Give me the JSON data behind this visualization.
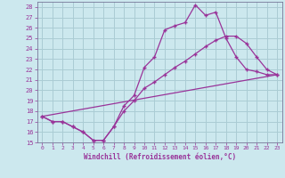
{
  "xlabel": "Windchill (Refroidissement éolien,°C)",
  "bg_color": "#cce8ee",
  "grid_color": "#aaccd4",
  "line_color": "#993399",
  "xlim": [
    -0.5,
    23.5
  ],
  "ylim": [
    15,
    28.5
  ],
  "xticks": [
    0,
    1,
    2,
    3,
    4,
    5,
    6,
    7,
    8,
    9,
    10,
    11,
    12,
    13,
    14,
    15,
    16,
    17,
    18,
    19,
    20,
    21,
    22,
    23
  ],
  "yticks": [
    15,
    16,
    17,
    18,
    19,
    20,
    21,
    22,
    23,
    24,
    25,
    26,
    27,
    28
  ],
  "series1_x": [
    0,
    1,
    2,
    3,
    4,
    5,
    6,
    7,
    8,
    9,
    10,
    11,
    12,
    13,
    14,
    15,
    16,
    17,
    18,
    19,
    20,
    21,
    22,
    23
  ],
  "series1_y": [
    17.5,
    17.0,
    17.0,
    16.5,
    16.0,
    15.2,
    15.2,
    16.5,
    18.5,
    19.5,
    22.2,
    23.2,
    25.8,
    26.2,
    26.5,
    28.2,
    27.2,
    27.5,
    25.0,
    23.2,
    22.0,
    21.8,
    21.5,
    21.5
  ],
  "series2_x": [
    0,
    23
  ],
  "series2_y": [
    17.5,
    21.5
  ],
  "series3_x": [
    0,
    1,
    2,
    3,
    4,
    5,
    6,
    7,
    8,
    9,
    10,
    11,
    12,
    13,
    14,
    15,
    16,
    17,
    18,
    19,
    20,
    21,
    22,
    23
  ],
  "series3_y": [
    17.5,
    17.0,
    17.0,
    16.5,
    16.0,
    15.2,
    15.2,
    16.5,
    18.0,
    19.0,
    20.2,
    20.8,
    21.5,
    22.2,
    22.8,
    23.5,
    24.2,
    24.8,
    25.2,
    25.2,
    24.5,
    23.2,
    22.0,
    21.5
  ]
}
